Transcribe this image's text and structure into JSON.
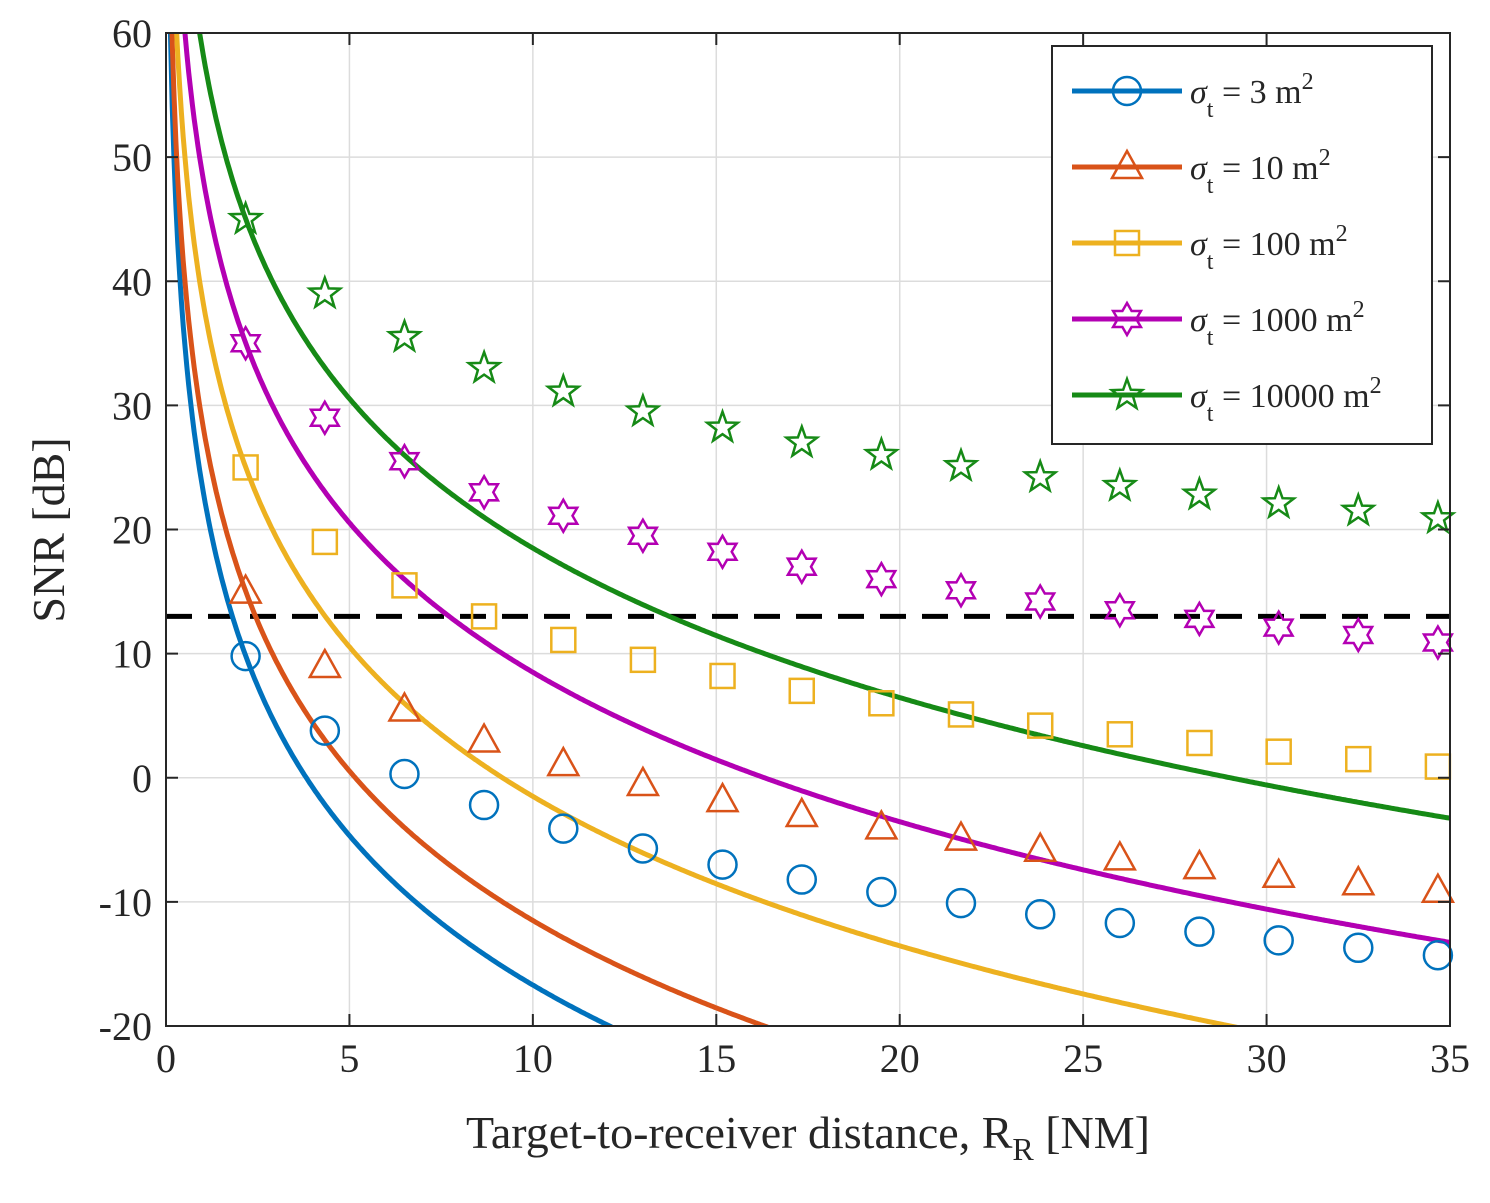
{
  "chart_data": {
    "type": "line",
    "title": "",
    "xlabel": "Target-to-receiver distance, ",
    "xlabel_symbol": "R",
    "xlabel_subscript": "R",
    "xlabel_unit": " [NM]",
    "ylabel": "SNR [dB]",
    "xlim": [
      0,
      35
    ],
    "ylim": [
      -20,
      60
    ],
    "xticks": [
      0,
      5,
      10,
      15,
      20,
      25,
      30,
      35
    ],
    "yticks": [
      -20,
      -10,
      0,
      10,
      20,
      30,
      40,
      50,
      60
    ],
    "grid": true,
    "legend_position": "top-right",
    "marker_x": [
      2.17,
      4.33,
      6.5,
      8.67,
      10.83,
      13,
      15.17,
      17.33,
      19.5,
      21.67,
      23.83,
      26,
      28.17,
      30.33,
      32.5,
      34.67
    ],
    "threshold": {
      "y": 13,
      "style": "dashed",
      "color": "#000000"
    },
    "series": [
      {
        "name": "σ_t = 3 m²",
        "legend_symbol": "σ",
        "legend_sub": "t",
        "legend_value": " = 3 m",
        "legend_sup": "2",
        "marker": "circle",
        "color": "#0072BD",
        "ref_snr_at_1nm": 23.3,
        "values": [
          9.8,
          3.8,
          0.3,
          -2.2,
          -4.1,
          -5.7,
          -7.0,
          -8.2,
          -9.2,
          -10.1,
          -11.0,
          -11.7,
          -12.4,
          -13.1,
          -13.7,
          -14.3
        ]
      },
      {
        "name": "σ_t = 10 m²",
        "legend_symbol": "σ",
        "legend_sub": "t",
        "legend_value": " = 10 m",
        "legend_sup": "2",
        "marker": "triangle",
        "color": "#D95319",
        "ref_snr_at_1nm": 28.5,
        "values": [
          15.0,
          9.0,
          5.5,
          3.0,
          1.1,
          -0.5,
          -1.8,
          -3.0,
          -4.0,
          -4.9,
          -5.8,
          -6.5,
          -7.2,
          -7.9,
          -8.5,
          -9.1
        ]
      },
      {
        "name": "σ_t = 100 m²",
        "legend_symbol": "σ",
        "legend_sub": "t",
        "legend_value": " = 100 m",
        "legend_sup": "2",
        "marker": "square",
        "color": "#EDB120",
        "ref_snr_at_1nm": 38.5,
        "values": [
          25.0,
          19.0,
          15.5,
          13.0,
          11.1,
          9.5,
          8.2,
          7.0,
          6.0,
          5.1,
          4.2,
          3.5,
          2.8,
          2.1,
          1.5,
          0.9
        ]
      },
      {
        "name": "σ_t = 1000 m²",
        "legend_symbol": "σ",
        "legend_sub": "t",
        "legend_value": " = 1000 m",
        "legend_sup": "2",
        "marker": "hexagram",
        "color": "#B300B3",
        "ref_snr_at_1nm": 48.5,
        "values": [
          35.0,
          29.0,
          25.5,
          23.0,
          21.1,
          19.5,
          18.2,
          17.0,
          16.0,
          15.1,
          14.2,
          13.5,
          12.8,
          12.1,
          11.5,
          10.9
        ]
      },
      {
        "name": "σ_t = 10000 m²",
        "legend_symbol": "σ",
        "legend_sub": "t",
        "legend_value": " = 10000 m",
        "legend_sup": "2",
        "marker": "pentagram",
        "color": "#168A16",
        "ref_snr_at_1nm": 58.5,
        "values": [
          45.0,
          39.0,
          35.5,
          33.0,
          31.1,
          29.5,
          28.2,
          27.0,
          26.0,
          25.1,
          24.2,
          23.5,
          22.8,
          22.1,
          21.5,
          20.9
        ]
      }
    ]
  }
}
